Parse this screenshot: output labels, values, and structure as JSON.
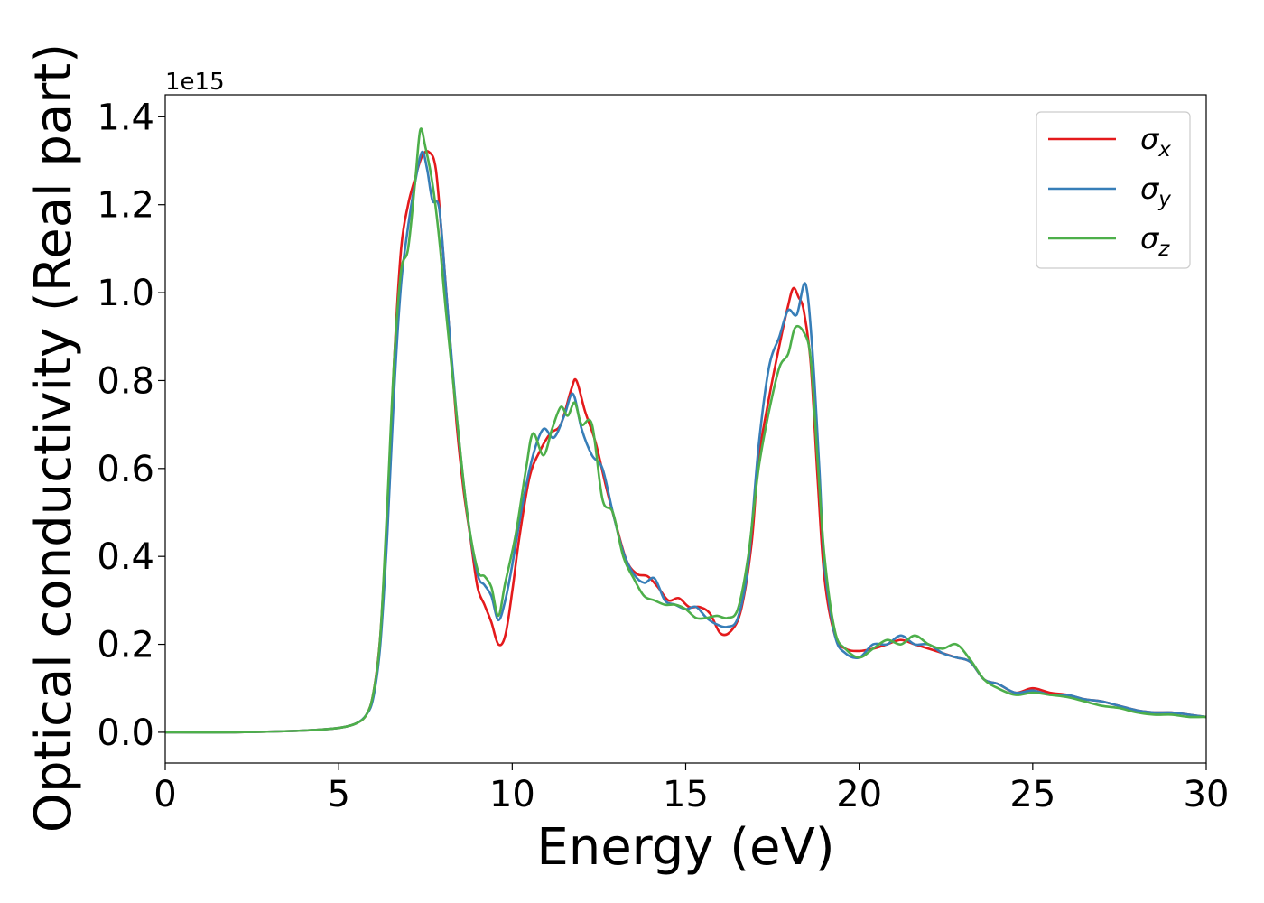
{
  "chart_data": {
    "type": "line",
    "title": "",
    "xlabel": "Energy (eV)",
    "ylabel": "Optical conductivity (Real part)",
    "y_offset_label": "1e15",
    "xlim": [
      0,
      30
    ],
    "ylim": [
      -0.07,
      1.45
    ],
    "xticks": [
      0,
      5,
      10,
      15,
      20,
      25,
      30
    ],
    "xtick_labels": [
      "0",
      "5",
      "10",
      "15",
      "20",
      "25",
      "30"
    ],
    "yticks": [
      0.0,
      0.2,
      0.4,
      0.6,
      0.8,
      1.0,
      1.2,
      1.4
    ],
    "ytick_labels": [
      "0.0",
      "0.2",
      "0.4",
      "0.6",
      "0.8",
      "1.0",
      "1.2",
      "1.4"
    ],
    "grid": false,
    "legend": "top-right",
    "series": [
      {
        "name": "σx",
        "label_base": "σ",
        "label_sub": "x",
        "color": "#e41a1c",
        "points": [
          [
            0,
            0
          ],
          [
            2,
            0
          ],
          [
            4,
            0.004
          ],
          [
            5,
            0.01
          ],
          [
            5.5,
            0.02
          ],
          [
            5.8,
            0.04
          ],
          [
            6.0,
            0.09
          ],
          [
            6.2,
            0.22
          ],
          [
            6.4,
            0.5
          ],
          [
            6.6,
            0.85
          ],
          [
            6.8,
            1.1
          ],
          [
            7.0,
            1.2
          ],
          [
            7.2,
            1.26
          ],
          [
            7.4,
            1.31
          ],
          [
            7.6,
            1.32
          ],
          [
            7.8,
            1.28
          ],
          [
            8.0,
            1.1
          ],
          [
            8.2,
            0.9
          ],
          [
            8.4,
            0.7
          ],
          [
            8.6,
            0.55
          ],
          [
            8.8,
            0.44
          ],
          [
            9.0,
            0.33
          ],
          [
            9.2,
            0.29
          ],
          [
            9.4,
            0.25
          ],
          [
            9.6,
            0.2
          ],
          [
            9.8,
            0.22
          ],
          [
            10.0,
            0.32
          ],
          [
            10.2,
            0.44
          ],
          [
            10.5,
            0.58
          ],
          [
            10.8,
            0.64
          ],
          [
            11.1,
            0.68
          ],
          [
            11.4,
            0.7
          ],
          [
            11.7,
            0.78
          ],
          [
            11.85,
            0.8
          ],
          [
            12.1,
            0.73
          ],
          [
            12.4,
            0.66
          ],
          [
            12.7,
            0.56
          ],
          [
            13.0,
            0.47
          ],
          [
            13.3,
            0.39
          ],
          [
            13.6,
            0.36
          ],
          [
            13.9,
            0.355
          ],
          [
            14.2,
            0.33
          ],
          [
            14.5,
            0.3
          ],
          [
            14.8,
            0.305
          ],
          [
            15.1,
            0.285
          ],
          [
            15.4,
            0.285
          ],
          [
            15.7,
            0.27
          ],
          [
            16.0,
            0.225
          ],
          [
            16.3,
            0.23
          ],
          [
            16.6,
            0.28
          ],
          [
            16.9,
            0.43
          ],
          [
            17.1,
            0.62
          ],
          [
            17.4,
            0.76
          ],
          [
            17.7,
            0.88
          ],
          [
            17.95,
            0.97
          ],
          [
            18.1,
            1.01
          ],
          [
            18.25,
            0.99
          ],
          [
            18.4,
            0.96
          ],
          [
            18.6,
            0.84
          ],
          [
            18.8,
            0.58
          ],
          [
            19.0,
            0.35
          ],
          [
            19.3,
            0.22
          ],
          [
            19.6,
            0.19
          ],
          [
            20.0,
            0.185
          ],
          [
            20.4,
            0.19
          ],
          [
            20.8,
            0.2
          ],
          [
            21.2,
            0.21
          ],
          [
            21.6,
            0.2
          ],
          [
            22.0,
            0.19
          ],
          [
            22.4,
            0.18
          ],
          [
            22.8,
            0.17
          ],
          [
            23.2,
            0.16
          ],
          [
            23.6,
            0.12
          ],
          [
            24.0,
            0.11
          ],
          [
            24.5,
            0.09
          ],
          [
            25.0,
            0.1
          ],
          [
            25.5,
            0.09
          ],
          [
            26.0,
            0.085
          ],
          [
            26.5,
            0.075
          ],
          [
            27.0,
            0.07
          ],
          [
            27.5,
            0.06
          ],
          [
            28.0,
            0.05
          ],
          [
            28.5,
            0.045
          ],
          [
            29.0,
            0.045
          ],
          [
            29.5,
            0.04
          ],
          [
            30,
            0.035
          ]
        ]
      },
      {
        "name": "σy",
        "label_base": "σ",
        "label_sub": "y",
        "color": "#377eb8",
        "points": [
          [
            0,
            0
          ],
          [
            2,
            0
          ],
          [
            4,
            0.004
          ],
          [
            5,
            0.01
          ],
          [
            5.5,
            0.02
          ],
          [
            5.8,
            0.04
          ],
          [
            6.0,
            0.08
          ],
          [
            6.2,
            0.2
          ],
          [
            6.4,
            0.45
          ],
          [
            6.6,
            0.78
          ],
          [
            6.8,
            1.02
          ],
          [
            7.0,
            1.15
          ],
          [
            7.2,
            1.25
          ],
          [
            7.4,
            1.32
          ],
          [
            7.55,
            1.28
          ],
          [
            7.7,
            1.21
          ],
          [
            7.9,
            1.19
          ],
          [
            8.1,
            1.0
          ],
          [
            8.4,
            0.72
          ],
          [
            8.7,
            0.5
          ],
          [
            9.0,
            0.36
          ],
          [
            9.2,
            0.335
          ],
          [
            9.4,
            0.31
          ],
          [
            9.6,
            0.255
          ],
          [
            9.8,
            0.3
          ],
          [
            10.0,
            0.38
          ],
          [
            10.3,
            0.52
          ],
          [
            10.6,
            0.63
          ],
          [
            10.9,
            0.69
          ],
          [
            11.2,
            0.67
          ],
          [
            11.5,
            0.72
          ],
          [
            11.75,
            0.77
          ],
          [
            12.0,
            0.69
          ],
          [
            12.3,
            0.63
          ],
          [
            12.6,
            0.6
          ],
          [
            12.9,
            0.5
          ],
          [
            13.2,
            0.41
          ],
          [
            13.5,
            0.36
          ],
          [
            13.8,
            0.34
          ],
          [
            14.1,
            0.35
          ],
          [
            14.4,
            0.3
          ],
          [
            14.7,
            0.29
          ],
          [
            15.0,
            0.28
          ],
          [
            15.3,
            0.285
          ],
          [
            15.6,
            0.26
          ],
          [
            15.9,
            0.245
          ],
          [
            16.2,
            0.24
          ],
          [
            16.5,
            0.26
          ],
          [
            16.8,
            0.38
          ],
          [
            17.1,
            0.65
          ],
          [
            17.4,
            0.83
          ],
          [
            17.7,
            0.9
          ],
          [
            17.95,
            0.96
          ],
          [
            18.2,
            0.95
          ],
          [
            18.45,
            1.02
          ],
          [
            18.65,
            0.87
          ],
          [
            18.85,
            0.6
          ],
          [
            19.0,
            0.38
          ],
          [
            19.3,
            0.22
          ],
          [
            19.6,
            0.18
          ],
          [
            20.0,
            0.17
          ],
          [
            20.4,
            0.2
          ],
          [
            20.8,
            0.2
          ],
          [
            21.2,
            0.22
          ],
          [
            21.6,
            0.2
          ],
          [
            22.0,
            0.2
          ],
          [
            22.4,
            0.18
          ],
          [
            22.8,
            0.17
          ],
          [
            23.2,
            0.16
          ],
          [
            23.6,
            0.12
          ],
          [
            24.0,
            0.11
          ],
          [
            24.5,
            0.09
          ],
          [
            25.0,
            0.095
          ],
          [
            25.5,
            0.085
          ],
          [
            26.0,
            0.085
          ],
          [
            26.5,
            0.075
          ],
          [
            27.0,
            0.07
          ],
          [
            27.5,
            0.06
          ],
          [
            28.0,
            0.05
          ],
          [
            28.5,
            0.045
          ],
          [
            29.0,
            0.045
          ],
          [
            29.5,
            0.04
          ],
          [
            30,
            0.035
          ]
        ]
      },
      {
        "name": "σz",
        "label_base": "σ",
        "label_sub": "z",
        "color": "#4daf4a",
        "points": [
          [
            0,
            0
          ],
          [
            2,
            0
          ],
          [
            4,
            0.004
          ],
          [
            5,
            0.01
          ],
          [
            5.5,
            0.02
          ],
          [
            5.8,
            0.04
          ],
          [
            6.0,
            0.09
          ],
          [
            6.2,
            0.22
          ],
          [
            6.4,
            0.52
          ],
          [
            6.6,
            0.85
          ],
          [
            6.8,
            1.05
          ],
          [
            7.0,
            1.1
          ],
          [
            7.2,
            1.25
          ],
          [
            7.35,
            1.37
          ],
          [
            7.5,
            1.33
          ],
          [
            7.7,
            1.25
          ],
          [
            7.9,
            1.12
          ],
          [
            8.1,
            0.95
          ],
          [
            8.4,
            0.72
          ],
          [
            8.7,
            0.5
          ],
          [
            9.0,
            0.37
          ],
          [
            9.2,
            0.355
          ],
          [
            9.4,
            0.33
          ],
          [
            9.6,
            0.265
          ],
          [
            9.8,
            0.34
          ],
          [
            10.1,
            0.45
          ],
          [
            10.4,
            0.6
          ],
          [
            10.6,
            0.68
          ],
          [
            10.9,
            0.63
          ],
          [
            11.15,
            0.69
          ],
          [
            11.4,
            0.74
          ],
          [
            11.6,
            0.72
          ],
          [
            11.8,
            0.75
          ],
          [
            12.0,
            0.7
          ],
          [
            12.3,
            0.7
          ],
          [
            12.6,
            0.53
          ],
          [
            12.9,
            0.5
          ],
          [
            13.2,
            0.4
          ],
          [
            13.5,
            0.35
          ],
          [
            13.8,
            0.31
          ],
          [
            14.1,
            0.3
          ],
          [
            14.4,
            0.29
          ],
          [
            14.7,
            0.29
          ],
          [
            15.0,
            0.28
          ],
          [
            15.3,
            0.26
          ],
          [
            15.6,
            0.26
          ],
          [
            15.9,
            0.265
          ],
          [
            16.2,
            0.26
          ],
          [
            16.5,
            0.28
          ],
          [
            16.8,
            0.4
          ],
          [
            17.1,
            0.6
          ],
          [
            17.4,
            0.73
          ],
          [
            17.7,
            0.83
          ],
          [
            17.95,
            0.86
          ],
          [
            18.15,
            0.92
          ],
          [
            18.4,
            0.91
          ],
          [
            18.6,
            0.85
          ],
          [
            18.8,
            0.62
          ],
          [
            19.0,
            0.4
          ],
          [
            19.3,
            0.23
          ],
          [
            19.6,
            0.19
          ],
          [
            20.0,
            0.17
          ],
          [
            20.4,
            0.19
          ],
          [
            20.8,
            0.21
          ],
          [
            21.2,
            0.2
          ],
          [
            21.6,
            0.22
          ],
          [
            22.0,
            0.2
          ],
          [
            22.4,
            0.19
          ],
          [
            22.8,
            0.2
          ],
          [
            23.2,
            0.165
          ],
          [
            23.6,
            0.12
          ],
          [
            24.0,
            0.1
          ],
          [
            24.5,
            0.085
          ],
          [
            25.0,
            0.09
          ],
          [
            25.5,
            0.085
          ],
          [
            26.0,
            0.08
          ],
          [
            26.5,
            0.07
          ],
          [
            27.0,
            0.06
          ],
          [
            27.5,
            0.055
          ],
          [
            28.0,
            0.045
          ],
          [
            28.5,
            0.04
          ],
          [
            29.0,
            0.04
          ],
          [
            29.5,
            0.035
          ],
          [
            30,
            0.035
          ]
        ]
      }
    ]
  }
}
